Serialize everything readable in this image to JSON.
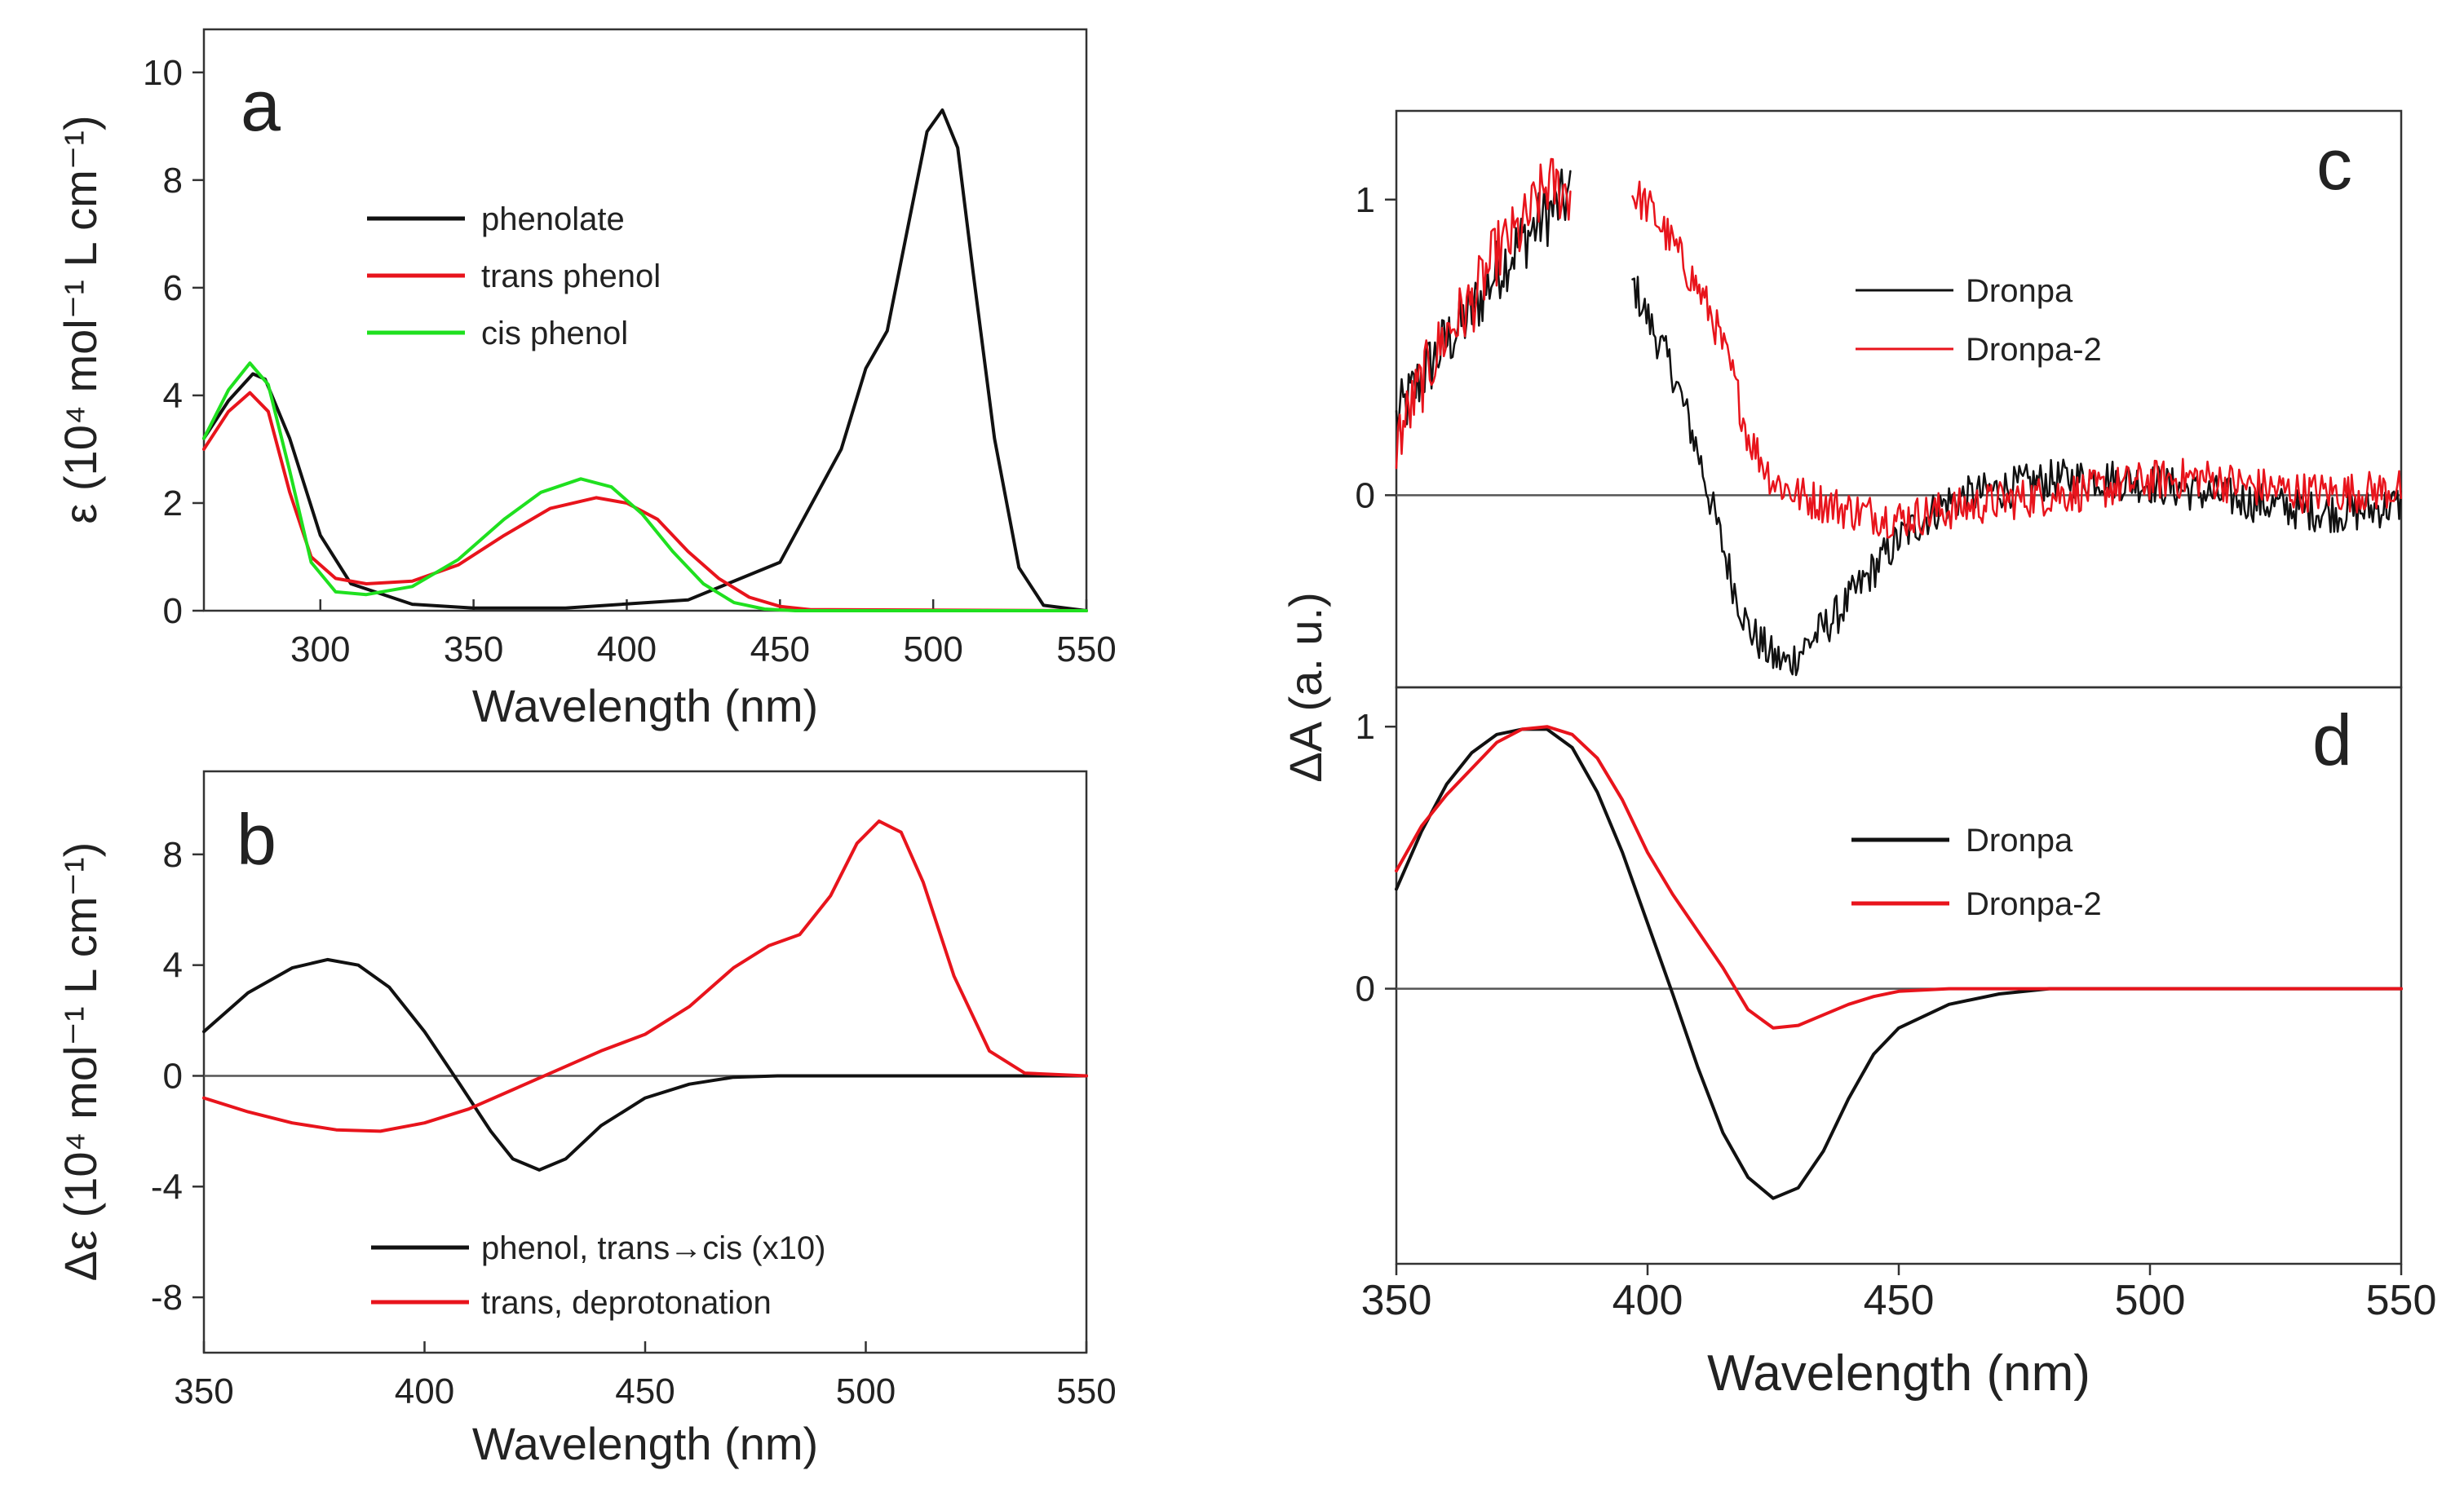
{
  "colors": {
    "black": "#111111",
    "red": "#e8141c",
    "green": "#1fe01f",
    "zero": "#555555"
  },
  "chart_data": [
    {
      "id": "a",
      "type": "line",
      "panel_label": "a",
      "xlabel": "Wavelength (nm)",
      "ylabel": "ε (10⁴ mol⁻¹ L cm⁻¹)",
      "xlim": [
        262,
        550
      ],
      "ylim": [
        0,
        10.8
      ],
      "xticks": [
        300,
        350,
        400,
        450,
        500,
        550
      ],
      "yticks": [
        0,
        2,
        4,
        6,
        8,
        10
      ],
      "legend_position": "upper-left",
      "series": [
        {
          "name": "phenolate",
          "color": "#111111",
          "x": [
            262,
            270,
            278,
            282,
            290,
            300,
            310,
            330,
            350,
            380,
            420,
            450,
            470,
            478,
            485,
            492,
            498,
            503,
            508,
            513,
            520,
            528,
            536,
            550
          ],
          "y": [
            3.2,
            3.9,
            4.4,
            4.3,
            3.2,
            1.4,
            0.5,
            0.12,
            0.05,
            0.05,
            0.2,
            0.9,
            3.0,
            4.5,
            5.2,
            7.2,
            8.9,
            9.3,
            8.6,
            6.3,
            3.2,
            0.8,
            0.1,
            0.0
          ]
        },
        {
          "name": "trans phenol",
          "color": "#e8141c",
          "x": [
            262,
            270,
            277,
            283,
            290,
            297,
            305,
            315,
            330,
            345,
            360,
            375,
            390,
            400,
            410,
            420,
            430,
            440,
            450,
            460,
            550
          ],
          "y": [
            3.0,
            3.7,
            4.05,
            3.7,
            2.2,
            1.0,
            0.6,
            0.5,
            0.55,
            0.85,
            1.4,
            1.9,
            2.1,
            2.0,
            1.7,
            1.1,
            0.6,
            0.25,
            0.08,
            0.02,
            0.0
          ]
        },
        {
          "name": "cis phenol",
          "color": "#1fe01f",
          "x": [
            262,
            270,
            277,
            283,
            290,
            297,
            305,
            315,
            330,
            345,
            360,
            372,
            385,
            395,
            405,
            415,
            425,
            435,
            445,
            455,
            550
          ],
          "y": [
            3.2,
            4.1,
            4.6,
            4.2,
            2.6,
            0.9,
            0.35,
            0.3,
            0.45,
            0.95,
            1.7,
            2.2,
            2.45,
            2.3,
            1.8,
            1.1,
            0.5,
            0.15,
            0.03,
            0.0,
            0.0
          ]
        }
      ]
    },
    {
      "id": "b",
      "type": "line",
      "panel_label": "b",
      "xlabel": "Wavelength (nm)",
      "ylabel": "Δε (10⁴ mol⁻¹ L cm⁻¹)",
      "xlim": [
        350,
        550
      ],
      "ylim": [
        -10,
        11
      ],
      "xticks": [
        350,
        400,
        450,
        500,
        550
      ],
      "yticks": [
        -8,
        -4,
        0,
        4,
        8
      ],
      "legend_position": "lower-center",
      "series": [
        {
          "name": "phenol, trans→cis (x10)",
          "color": "#111111",
          "x": [
            350,
            360,
            370,
            378,
            385,
            392,
            400,
            408,
            415,
            420,
            426,
            432,
            440,
            450,
            460,
            470,
            480,
            550
          ],
          "y": [
            1.6,
            3.0,
            3.9,
            4.2,
            4.0,
            3.2,
            1.6,
            -0.3,
            -2.0,
            -3.0,
            -3.4,
            -3.0,
            -1.8,
            -0.8,
            -0.3,
            -0.05,
            0.0,
            0.0
          ]
        },
        {
          "name": "trans, deprotonation",
          "color": "#e8141c",
          "x": [
            350,
            360,
            370,
            380,
            390,
            400,
            410,
            420,
            430,
            440,
            450,
            460,
            470,
            478,
            485,
            492,
            498,
            503,
            508,
            513,
            520,
            528,
            536,
            550
          ],
          "y": [
            -0.8,
            -1.3,
            -1.7,
            -1.95,
            -2.0,
            -1.7,
            -1.2,
            -0.5,
            0.2,
            0.9,
            1.5,
            2.5,
            3.9,
            4.7,
            5.1,
            6.5,
            8.4,
            9.2,
            8.8,
            7.0,
            3.6,
            0.9,
            0.1,
            0.0
          ]
        }
      ]
    },
    {
      "id": "c",
      "type": "line",
      "panel_label": "c",
      "ylabel": "ΔA (a. u.)",
      "xlim": [
        350,
        550
      ],
      "ylim": [
        -0.65,
        1.3
      ],
      "yticks": [
        0,
        1
      ],
      "legend_position": "upper-right",
      "series": [
        {
          "name": "Dronpa",
          "color": "#111111",
          "segments": [
            {
              "x": [
                350,
                355,
                360,
                365,
                370,
                375,
                380,
                385
              ],
              "y": [
                0.25,
                0.4,
                0.52,
                0.62,
                0.76,
                0.86,
                0.95,
                1.02
              ]
            },
            {
              "x": [
                397,
                400,
                405,
                410,
                413,
                417,
                420,
                425,
                428,
                432,
                438,
                445,
                450,
                455,
                460,
                470,
                480,
                490,
                500,
                510,
                520,
                530,
                540,
                550
              ],
              "y": [
                0.72,
                0.6,
                0.42,
                0.15,
                -0.05,
                -0.3,
                -0.45,
                -0.55,
                -0.57,
                -0.5,
                -0.4,
                -0.25,
                -0.15,
                -0.08,
                -0.02,
                0.02,
                0.05,
                0.06,
                0.04,
                0.01,
                -0.02,
                -0.05,
                -0.06,
                -0.03
              ]
            }
          ]
        },
        {
          "name": "Dronpa-2",
          "color": "#e8141c",
          "segments": [
            {
              "x": [
                350,
                355,
                360,
                365,
                370,
                375,
                380,
                385
              ],
              "y": [
                0.18,
                0.38,
                0.55,
                0.65,
                0.82,
                0.9,
                1.05,
                1.02
              ]
            },
            {
              "x": [
                397,
                400,
                405,
                410,
                413,
                417,
                420,
                425,
                430,
                440,
                450,
                460,
                470,
                480,
                490,
                500,
                510,
                520,
                530,
                540,
                550
              ],
              "y": [
                1.02,
                0.98,
                0.85,
                0.7,
                0.6,
                0.4,
                0.2,
                0.05,
                0.0,
                -0.05,
                -0.08,
                -0.05,
                -0.02,
                0.0,
                0.02,
                0.05,
                0.06,
                0.03,
                0.01,
                0.01,
                0.02
              ]
            }
          ]
        }
      ]
    },
    {
      "id": "d",
      "type": "line",
      "panel_label": "d",
      "xlabel": "Wavelength (nm)",
      "xlim": [
        350,
        550
      ],
      "ylim": [
        -1.05,
        1.15
      ],
      "xticks": [
        350,
        400,
        450,
        500,
        550
      ],
      "yticks": [
        0,
        1
      ],
      "legend_position": "upper-right",
      "series": [
        {
          "name": "Dronpa",
          "color": "#111111",
          "x": [
            350,
            355,
            360,
            365,
            370,
            375,
            380,
            385,
            390,
            395,
            400,
            405,
            410,
            415,
            420,
            425,
            430,
            435,
            440,
            445,
            450,
            460,
            470,
            480,
            550
          ],
          "y": [
            0.38,
            0.6,
            0.78,
            0.9,
            0.97,
            0.99,
            0.99,
            0.92,
            0.75,
            0.52,
            0.25,
            -0.02,
            -0.3,
            -0.55,
            -0.72,
            -0.8,
            -0.76,
            -0.62,
            -0.42,
            -0.25,
            -0.15,
            -0.06,
            -0.02,
            0.0,
            0.0
          ]
        },
        {
          "name": "Dronpa-2",
          "color": "#e8141c",
          "x": [
            350,
            355,
            360,
            365,
            370,
            375,
            380,
            385,
            390,
            395,
            400,
            405,
            410,
            415,
            420,
            425,
            430,
            435,
            440,
            445,
            450,
            460,
            550
          ],
          "y": [
            0.45,
            0.62,
            0.74,
            0.84,
            0.94,
            0.99,
            1.0,
            0.97,
            0.88,
            0.72,
            0.52,
            0.36,
            0.22,
            0.08,
            -0.08,
            -0.15,
            -0.14,
            -0.1,
            -0.06,
            -0.03,
            -0.01,
            0.0,
            0.0
          ]
        }
      ]
    }
  ]
}
